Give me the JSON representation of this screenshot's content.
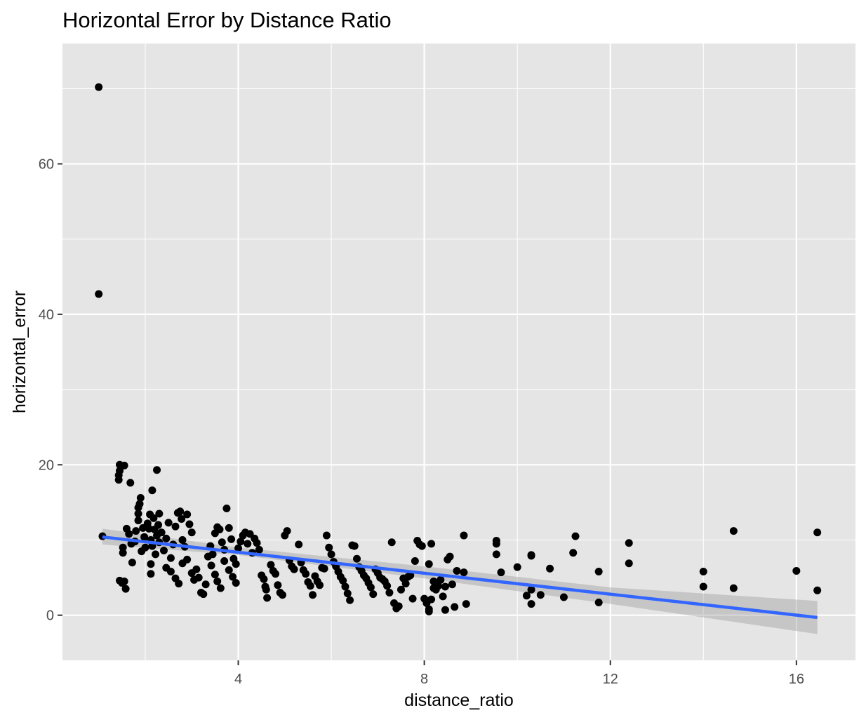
{
  "chart_data": {
    "type": "scatter",
    "title": "Horizontal Error by Distance Ratio",
    "xlabel": "distance_ratio",
    "ylabel": "horizontal_error",
    "xlim": [
      0.22,
      17.27
    ],
    "ylim": [
      -6,
      76
    ],
    "x_ticks": [
      4,
      8,
      12,
      16
    ],
    "y_ticks": [
      0,
      20,
      40,
      60
    ],
    "x_ticks_minor": [
      2,
      6,
      10,
      14
    ],
    "y_ticks_minor": [
      10,
      30,
      50,
      70
    ],
    "grid": true,
    "colors": {
      "panel_background": "#e5e5e5",
      "grid_line": "#ffffff",
      "points": "#000000",
      "fit_line": "#3366ff",
      "confidence_band": "#999999"
    },
    "points": [
      [
        1.0,
        70.2
      ],
      [
        1.0,
        42.7
      ],
      [
        1.08,
        10.5
      ],
      [
        1.45,
        20.0
      ],
      [
        1.45,
        19.2
      ],
      [
        1.43,
        18.6
      ],
      [
        1.43,
        18.0
      ],
      [
        1.55,
        19.9
      ],
      [
        1.68,
        17.6
      ],
      [
        1.45,
        4.6
      ],
      [
        1.5,
        4.3
      ],
      [
        1.55,
        4.5
      ],
      [
        1.58,
        3.5
      ],
      [
        1.52,
        9.0
      ],
      [
        1.52,
        8.3
      ],
      [
        1.6,
        11.5
      ],
      [
        1.65,
        10.8
      ],
      [
        1.7,
        9.5
      ],
      [
        1.72,
        7.0
      ],
      [
        1.78,
        9.8
      ],
      [
        1.8,
        11.2
      ],
      [
        1.85,
        12.6
      ],
      [
        1.85,
        13.5
      ],
      [
        1.85,
        14.3
      ],
      [
        1.88,
        14.8
      ],
      [
        1.9,
        15.6
      ],
      [
        1.92,
        8.5
      ],
      [
        1.95,
        11.6
      ],
      [
        1.98,
        10.4
      ],
      [
        2.0,
        9.0
      ],
      [
        2.05,
        12.2
      ],
      [
        2.08,
        11.5
      ],
      [
        2.1,
        13.4
      ],
      [
        2.12,
        10.0
      ],
      [
        2.15,
        9.2
      ],
      [
        2.18,
        12.9
      ],
      [
        2.2,
        11.4
      ],
      [
        2.22,
        8.1
      ],
      [
        2.25,
        10.6
      ],
      [
        2.28,
        12.0
      ],
      [
        2.3,
        9.7
      ],
      [
        2.12,
        6.8
      ],
      [
        2.12,
        5.5
      ],
      [
        2.15,
        16.6
      ],
      [
        2.25,
        19.3
      ],
      [
        2.3,
        13.5
      ],
      [
        2.35,
        11.0
      ],
      [
        2.4,
        8.6
      ],
      [
        2.45,
        10.2
      ],
      [
        2.5,
        12.3
      ],
      [
        2.55,
        7.6
      ],
      [
        2.6,
        9.4
      ],
      [
        2.65,
        11.8
      ],
      [
        2.7,
        13.6
      ],
      [
        2.75,
        13.8
      ],
      [
        2.78,
        12.8
      ],
      [
        2.8,
        10.0
      ],
      [
        2.85,
        9.1
      ],
      [
        2.9,
        13.4
      ],
      [
        2.95,
        12.1
      ],
      [
        3.0,
        11.0
      ],
      [
        2.45,
        6.3
      ],
      [
        2.55,
        5.8
      ],
      [
        2.65,
        4.9
      ],
      [
        2.72,
        4.2
      ],
      [
        2.8,
        6.9
      ],
      [
        2.9,
        7.4
      ],
      [
        3.0,
        5.6
      ],
      [
        3.05,
        4.7
      ],
      [
        3.1,
        6.1
      ],
      [
        3.15,
        5.0
      ],
      [
        3.2,
        3.0
      ],
      [
        3.25,
        2.8
      ],
      [
        3.3,
        4.1
      ],
      [
        3.35,
        7.8
      ],
      [
        3.4,
        9.2
      ],
      [
        3.45,
        8.1
      ],
      [
        3.5,
        10.9
      ],
      [
        3.55,
        11.7
      ],
      [
        3.6,
        11.4
      ],
      [
        3.65,
        9.7
      ],
      [
        3.7,
        8.7
      ],
      [
        3.75,
        14.2
      ],
      [
        3.8,
        11.6
      ],
      [
        3.85,
        10.1
      ],
      [
        3.9,
        7.5
      ],
      [
        3.95,
        6.8
      ],
      [
        3.42,
        6.6
      ],
      [
        3.5,
        5.4
      ],
      [
        3.55,
        4.5
      ],
      [
        3.62,
        3.6
      ],
      [
        3.7,
        7.2
      ],
      [
        3.8,
        6.0
      ],
      [
        3.88,
        5.1
      ],
      [
        3.95,
        4.3
      ],
      [
        4.0,
        8.9
      ],
      [
        4.05,
        9.8
      ],
      [
        4.1,
        10.6
      ],
      [
        4.15,
        11.0
      ],
      [
        4.2,
        9.5
      ],
      [
        4.25,
        10.8
      ],
      [
        4.3,
        8.3
      ],
      [
        4.35,
        10.2
      ],
      [
        4.4,
        9.6
      ],
      [
        4.45,
        8.7
      ],
      [
        4.5,
        5.3
      ],
      [
        4.55,
        4.8
      ],
      [
        4.58,
        3.8
      ],
      [
        4.6,
        3.4
      ],
      [
        4.62,
        2.3
      ],
      [
        4.7,
        6.7
      ],
      [
        4.75,
        5.9
      ],
      [
        4.8,
        5.5
      ],
      [
        4.85,
        4.0
      ],
      [
        4.9,
        3.0
      ],
      [
        4.95,
        2.7
      ],
      [
        5.0,
        10.6
      ],
      [
        5.05,
        11.2
      ],
      [
        5.1,
        7.3
      ],
      [
        5.15,
        6.5
      ],
      [
        5.2,
        6.1
      ],
      [
        5.3,
        9.4
      ],
      [
        5.35,
        7.0
      ],
      [
        5.4,
        6.0
      ],
      [
        5.45,
        5.5
      ],
      [
        5.5,
        4.4
      ],
      [
        5.55,
        3.9
      ],
      [
        5.6,
        2.7
      ],
      [
        5.65,
        5.2
      ],
      [
        5.7,
        4.5
      ],
      [
        5.75,
        4.0
      ],
      [
        5.8,
        6.3
      ],
      [
        5.85,
        6.2
      ],
      [
        5.9,
        10.6
      ],
      [
        5.95,
        9.0
      ],
      [
        6.0,
        8.1
      ],
      [
        6.05,
        7.1
      ],
      [
        6.1,
        6.5
      ],
      [
        6.15,
        5.8
      ],
      [
        6.2,
        5.1
      ],
      [
        6.25,
        4.6
      ],
      [
        6.3,
        3.8
      ],
      [
        6.35,
        2.9
      ],
      [
        6.4,
        2.0
      ],
      [
        6.45,
        9.3
      ],
      [
        6.5,
        9.2
      ],
      [
        6.55,
        7.5
      ],
      [
        6.6,
        6.4
      ],
      [
        6.65,
        5.9
      ],
      [
        6.7,
        5.3
      ],
      [
        6.75,
        4.9
      ],
      [
        6.8,
        4.3
      ],
      [
        6.85,
        3.7
      ],
      [
        6.9,
        2.8
      ],
      [
        6.95,
        6.1
      ],
      [
        7.0,
        5.6
      ],
      [
        7.05,
        5.0
      ],
      [
        7.1,
        4.8
      ],
      [
        7.15,
        4.5
      ],
      [
        7.2,
        3.9
      ],
      [
        7.25,
        3.0
      ],
      [
        7.3,
        9.7
      ],
      [
        7.35,
        1.6
      ],
      [
        7.4,
        0.9
      ],
      [
        7.45,
        1.2
      ],
      [
        7.5,
        3.4
      ],
      [
        7.55,
        4.9
      ],
      [
        7.6,
        4.2
      ],
      [
        7.65,
        5.1
      ],
      [
        7.7,
        5.3
      ],
      [
        7.75,
        2.2
      ],
      [
        7.8,
        7.2
      ],
      [
        7.85,
        9.9
      ],
      [
        7.9,
        9.4
      ],
      [
        7.95,
        9.2
      ],
      [
        8.0,
        2.2
      ],
      [
        8.05,
        1.6
      ],
      [
        8.1,
        6.8
      ],
      [
        8.15,
        2.1
      ],
      [
        8.2,
        3.6
      ],
      [
        8.25,
        3.4
      ],
      [
        8.3,
        3.9
      ],
      [
        8.35,
        4.7
      ],
      [
        8.4,
        2.5
      ],
      [
        8.45,
        3.8
      ],
      [
        8.5,
        7.4
      ],
      [
        8.55,
        7.8
      ],
      [
        8.6,
        4.1
      ],
      [
        8.65,
        1.1
      ],
      [
        8.7,
        5.9
      ],
      [
        8.1,
        0.8
      ],
      [
        8.1,
        0.5
      ],
      [
        8.15,
        9.5
      ],
      [
        8.2,
        4.5
      ],
      [
        8.45,
        0.7
      ],
      [
        8.85,
        10.6
      ],
      [
        8.85,
        5.7
      ],
      [
        8.9,
        1.5
      ],
      [
        9.55,
        9.9
      ],
      [
        9.55,
        9.5
      ],
      [
        9.55,
        8.1
      ],
      [
        9.65,
        5.7
      ],
      [
        10.0,
        6.4
      ],
      [
        10.2,
        2.6
      ],
      [
        10.3,
        7.9
      ],
      [
        10.3,
        8.0
      ],
      [
        10.3,
        3.4
      ],
      [
        10.3,
        1.5
      ],
      [
        10.5,
        2.7
      ],
      [
        10.7,
        6.2
      ],
      [
        11.0,
        2.4
      ],
      [
        11.2,
        8.3
      ],
      [
        11.25,
        10.5
      ],
      [
        11.75,
        5.8
      ],
      [
        11.75,
        1.7
      ],
      [
        12.4,
        9.6
      ],
      [
        12.4,
        6.9
      ],
      [
        14.0,
        5.8
      ],
      [
        14.0,
        3.8
      ],
      [
        14.65,
        11.2
      ],
      [
        14.65,
        3.6
      ],
      [
        16.0,
        5.9
      ],
      [
        16.45,
        11.0
      ],
      [
        16.45,
        3.3
      ]
    ],
    "fit_line": {
      "x": [
        1.08,
        16.45
      ],
      "y": [
        10.4,
        -0.3
      ]
    },
    "confidence_band": {
      "x": [
        1.08,
        4.0,
        8.0,
        12.0,
        16.45
      ],
      "upper": [
        11.5,
        9.0,
        6.5,
        3.7,
        1.9
      ],
      "lower": [
        9.4,
        8.0,
        4.9,
        1.5,
        -2.5
      ]
    }
  }
}
